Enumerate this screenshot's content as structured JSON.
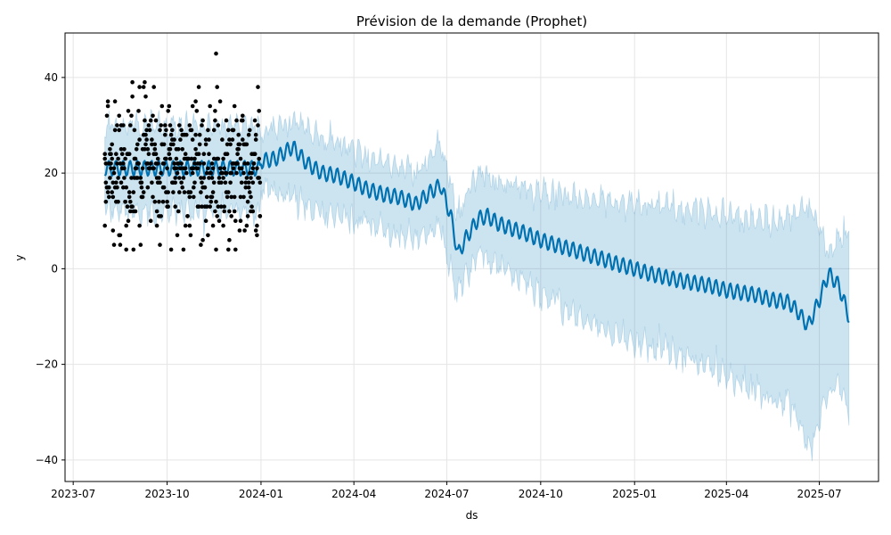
{
  "chart_data": {
    "type": "line",
    "title": "Prévision de la demande (Prophet)",
    "xlabel": "ds",
    "ylabel": "y",
    "xlim": [
      "2023-06-23",
      "2025-08-28"
    ],
    "ylim": [
      -44.5,
      49.3
    ],
    "grid": true,
    "x_ticks": [
      "2023-07",
      "2023-10",
      "2024-01",
      "2024-04",
      "2024-07",
      "2024-10",
      "2025-01",
      "2025-04",
      "2025-07"
    ],
    "y_ticks": [
      -40,
      -20,
      0,
      20,
      40
    ],
    "y_tick_labels": [
      "−40",
      "−20",
      "0",
      "20",
      "40"
    ],
    "colors": {
      "observed": "#000000",
      "forecast": "#0072b2",
      "interval": "#0072b2"
    },
    "series": [
      {
        "role": "forecast",
        "x": [
          "2024-01-01",
          "2024-01-15",
          "2024-02-01",
          "2024-02-15",
          "2024-03-01",
          "2024-03-15",
          "2024-04-01",
          "2024-04-15",
          "2024-05-01",
          "2024-05-15",
          "2024-06-01",
          "2024-06-15",
          "2024-06-25",
          "2024-07-05",
          "2024-07-12",
          "2024-07-20",
          "2024-08-01",
          "2024-08-10",
          "2024-08-20",
          "2024-09-01",
          "2024-09-15",
          "2024-10-01",
          "2024-10-15",
          "2024-11-01",
          "2024-11-15",
          "2024-12-01",
          "2024-12-15",
          "2025-01-01",
          "2025-01-15",
          "2025-02-01",
          "2025-02-15",
          "2025-03-01",
          "2025-03-15",
          "2025-04-01",
          "2025-04-15",
          "2025-05-01",
          "2025-05-15",
          "2025-06-01",
          "2025-06-10",
          "2025-06-20",
          "2025-07-01",
          "2025-07-10",
          "2025-07-20",
          "2025-07-30"
        ],
        "y": [
          22.5,
          23,
          25.5,
          22,
          20,
          19.5,
          18,
          16.5,
          15.5,
          15,
          13.5,
          16,
          17.5,
          11,
          3,
          6.5,
          10.5,
          11,
          9.5,
          8.5,
          7.5,
          6,
          5,
          4,
          3,
          2,
          1,
          0,
          -1,
          -1.8,
          -2.5,
          -3,
          -3.5,
          -4.5,
          -5,
          -5.5,
          -6.5,
          -7,
          -9,
          -12,
          -6.5,
          -1,
          -3.5,
          -10
        ],
        "lower": [
          17,
          16,
          15.5,
          13,
          11.5,
          11,
          10,
          9,
          8.5,
          7.5,
          6,
          8,
          9,
          0,
          -6,
          -2,
          3.5,
          1.5,
          0.5,
          -1,
          -3,
          -5,
          -7,
          -9,
          -11,
          -12.5,
          -14,
          -15,
          -16,
          -17,
          -18.5,
          -19.5,
          -20.5,
          -22,
          -24,
          -25.5,
          -27,
          -28.5,
          -32,
          -38,
          -32,
          -26,
          -24,
          -30
        ],
        "upper": [
          28,
          29.5,
          31.5,
          29,
          27,
          26.5,
          25,
          23,
          22.5,
          21.5,
          20,
          24,
          26,
          18,
          11,
          15.5,
          20,
          19,
          18,
          17.5,
          17,
          16,
          15.5,
          15,
          14.5,
          14,
          13.5,
          14,
          13.5,
          13,
          12.5,
          12.5,
          12,
          11.5,
          11,
          10.5,
          10,
          10,
          11.5,
          13,
          9,
          3,
          6,
          8.5
        ]
      },
      {
        "role": "observed",
        "x_start": "2023-08-01",
        "x_end": "2023-12-31",
        "mean": 21,
        "std": 7.5,
        "count": 153,
        "y_min": 4,
        "y_max": 45
      }
    ]
  }
}
